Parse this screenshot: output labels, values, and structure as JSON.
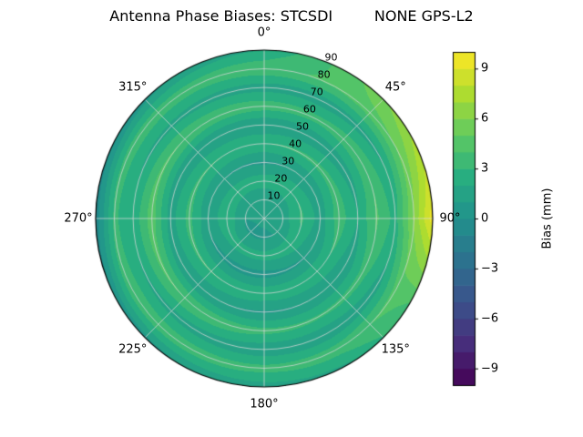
{
  "title": "Antenna Phase Biases: STCSDI         NONE GPS-L2",
  "chart_data": {
    "type": "heatmap",
    "projection": "polar",
    "title": "Antenna Phase Biases: STCSDI         NONE GPS-L2",
    "colormap": "viridis",
    "vmin_mm": -10,
    "vmax_mm": 10,
    "level_step_mm": 1,
    "colorbar": {
      "label": "Bias (mm)",
      "tick_values": [
        9,
        6,
        3,
        0,
        -3,
        -6,
        -9
      ],
      "tick_labels": [
        "9",
        "6",
        "3",
        "0",
        "−3",
        "−6",
        "−9"
      ]
    },
    "angular_ticks": {
      "values": [
        0,
        45,
        90,
        135,
        180,
        225,
        270,
        315
      ],
      "labels": [
        "0°",
        "45°",
        "90°",
        "135°",
        "180°",
        "225°",
        "270°",
        "315°"
      ]
    },
    "radial_ticks": {
      "values": [
        10,
        20,
        30,
        40,
        50,
        60,
        70,
        80,
        90
      ],
      "labels": [
        "10",
        "20",
        "30",
        "40",
        "50",
        "60",
        "70",
        "80",
        "90"
      ],
      "label_angle_deg": 22.5,
      "max": 90
    },
    "azimuth_deg": [
      0,
      30,
      60,
      90,
      120,
      150,
      180,
      210,
      240,
      270,
      300,
      330
    ],
    "zenith_deg": [
      0,
      10,
      20,
      30,
      40,
      50,
      60,
      70,
      80,
      90
    ],
    "values_mm": [
      [
        1.2,
        1.2,
        1.2,
        1.2,
        1.2,
        1.2,
        1.2,
        1.2,
        1.2,
        1.2,
        1.2,
        1.2
      ],
      [
        1.0,
        1.0,
        1.2,
        1.5,
        1.2,
        1.0,
        0.8,
        0.8,
        0.8,
        1.0,
        1.0,
        1.0
      ],
      [
        2.6,
        2.8,
        3.0,
        3.2,
        2.8,
        2.5,
        2.4,
        2.4,
        2.5,
        2.8,
        2.7,
        2.6
      ],
      [
        0.8,
        1.0,
        1.2,
        1.5,
        1.0,
        0.8,
        0.6,
        0.6,
        0.8,
        1.2,
        1.0,
        0.9
      ],
      [
        3.0,
        3.2,
        3.4,
        3.6,
        3.0,
        2.8,
        2.8,
        3.0,
        3.2,
        3.4,
        3.2,
        3.0
      ],
      [
        1.0,
        1.2,
        1.5,
        2.0,
        1.2,
        1.0,
        0.8,
        1.0,
        1.2,
        1.5,
        1.2,
        1.0
      ],
      [
        3.6,
        3.4,
        3.8,
        4.2,
        3.4,
        3.2,
        3.4,
        3.8,
        4.2,
        4.6,
        4.2,
        3.8
      ],
      [
        1.5,
        1.4,
        1.8,
        2.6,
        1.6,
        1.2,
        1.2,
        1.5,
        1.8,
        2.2,
        1.8,
        1.6
      ],
      [
        3.8,
        4.2,
        5.0,
        6.2,
        4.4,
        3.6,
        3.4,
        3.6,
        3.8,
        3.2,
        3.6,
        3.6
      ],
      [
        2.0,
        4.5,
        7.0,
        9.6,
        4.0,
        1.8,
        1.5,
        1.0,
        0.2,
        -0.8,
        0.0,
        1.2
      ]
    ]
  },
  "colors": {
    "background": "#ffffff",
    "grid": "#d9d9d9",
    "outline": "#000000",
    "viridis_stops": [
      {
        "t": 0.0,
        "c": "#440154"
      },
      {
        "t": 0.125,
        "c": "#472d7b"
      },
      {
        "t": 0.25,
        "c": "#3b528b"
      },
      {
        "t": 0.375,
        "c": "#2c728e"
      },
      {
        "t": 0.5,
        "c": "#21918c"
      },
      {
        "t": 0.625,
        "c": "#28ae80"
      },
      {
        "t": 0.75,
        "c": "#5ec962"
      },
      {
        "t": 0.875,
        "c": "#addc30"
      },
      {
        "t": 1.0,
        "c": "#fde725"
      }
    ]
  }
}
